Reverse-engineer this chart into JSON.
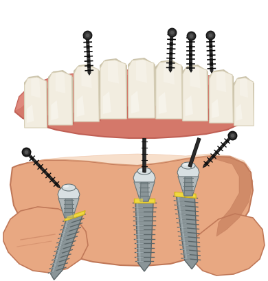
{
  "bg_color": "#ffffff",
  "fig_width": 3.9,
  "fig_height": 4.1,
  "dpi": 100,
  "gum_color": "#d4786a",
  "gum_color_top": "#e8958a",
  "gum_color_bottom": "#c06055",
  "tooth_color": "#f2ede0",
  "tooth_highlight": "#ffffff",
  "tooth_shadow": "#c8c0a8",
  "implant_body": "#8a9598",
  "implant_thread": "#5a6568",
  "implant_light": "#b8c4c8",
  "abutment_mid": "#b0b8ba",
  "abutment_light": "#d8e0e2",
  "abutment_dark": "#687578",
  "screw_body": "#1a1a1a",
  "screw_thread": "#3a3a3a",
  "gold_top": "#d4b820",
  "gold_light": "#f0d840",
  "skin_base": "#e8a882",
  "skin_dark": "#c07858",
  "skin_light": "#f0c098",
  "white": "#ffffff"
}
